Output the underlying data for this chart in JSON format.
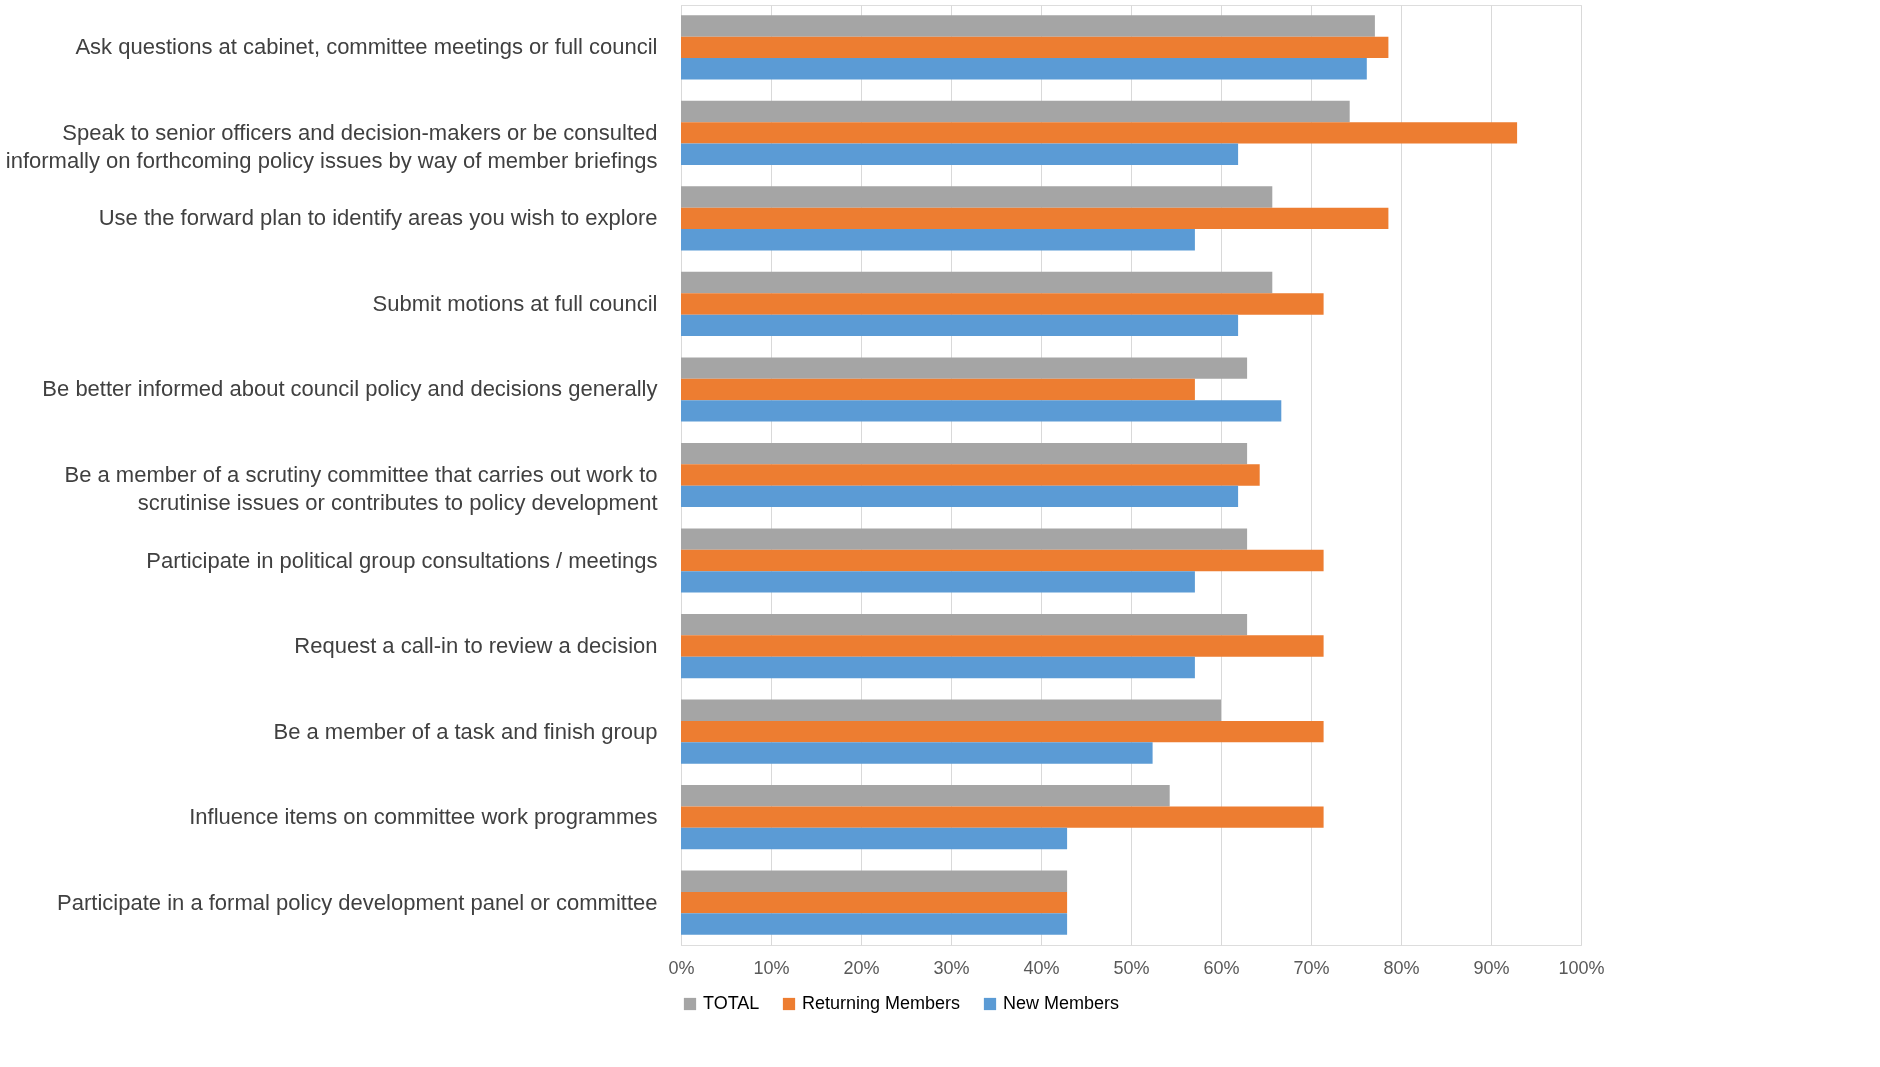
{
  "chart_data": {
    "type": "bar",
    "orientation": "horizontal",
    "categories": [
      "Ask questions at cabinet, committee meetings or full council",
      "Speak to senior officers and decision-makers or be consulted informally on forthcoming policy issues by way of member briefings",
      "Use the forward plan to identify areas you wish to explore",
      "Submit motions at full council",
      "Be better informed about council policy and decisions generally",
      "Be a member of a scrutiny committee that carries out work to scrutinise issues or contributes to policy development",
      "Participate in political group consultations / meetings",
      "Request a call-in to review a decision",
      "Be a member of a task and finish group",
      "Influence items on committee work programmes",
      "Participate in a formal policy development panel or committee"
    ],
    "series": [
      {
        "name": "TOTAL",
        "color": "#a5a5a5",
        "values": [
          77.1,
          74.3,
          65.7,
          65.7,
          62.9,
          62.9,
          62.9,
          62.9,
          60.0,
          54.3,
          42.9
        ]
      },
      {
        "name": "Returning Members",
        "color": "#ed7d31",
        "values": [
          78.6,
          92.9,
          78.6,
          71.4,
          57.1,
          64.3,
          71.4,
          71.4,
          71.4,
          71.4,
          42.9
        ]
      },
      {
        "name": "New Members",
        "color": "#5b9bd5",
        "values": [
          76.2,
          61.9,
          57.1,
          61.9,
          66.7,
          61.9,
          57.1,
          57.1,
          52.4,
          42.9,
          42.9
        ]
      }
    ],
    "xlim": [
      0,
      100
    ],
    "xticks": [
      {
        "value": 0,
        "label": "0%"
      },
      {
        "value": 10,
        "label": "10%"
      },
      {
        "value": 20,
        "label": "20%"
      },
      {
        "value": 30,
        "label": "30%"
      },
      {
        "value": 40,
        "label": "40%"
      },
      {
        "value": 50,
        "label": "50%"
      },
      {
        "value": 60,
        "label": "60%"
      },
      {
        "value": 70,
        "label": "70%"
      },
      {
        "value": 80,
        "label": "80%"
      },
      {
        "value": 90,
        "label": "90%"
      },
      {
        "value": 100,
        "label": "100%"
      }
    ],
    "grid": "x",
    "legend": "bottom"
  }
}
